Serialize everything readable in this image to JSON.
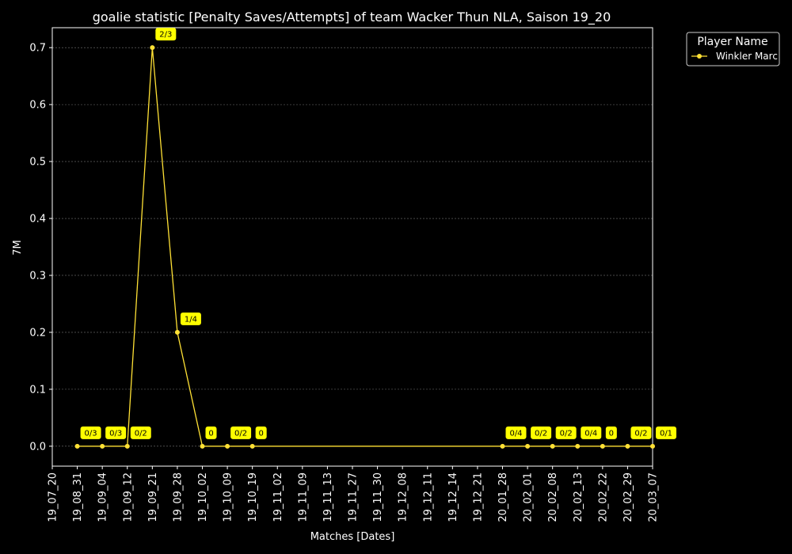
{
  "chart_data": {
    "type": "line",
    "title": "goalie statistic [Penalty Saves/Attempts] of team Wacker Thun NLA, Saison 19_20",
    "xlabel": "Matches [Dates]",
    "ylabel": "7M",
    "ylim": [
      -0.035,
      0.735
    ],
    "yticks": [
      0.0,
      0.1,
      0.2,
      0.3,
      0.4,
      0.5,
      0.6,
      0.7
    ],
    "ytick_labels": [
      "0.0",
      "0.1",
      "0.2",
      "0.3",
      "0.4",
      "0.5",
      "0.6",
      "0.7"
    ],
    "categories": [
      "19_07_20",
      "19_08_31",
      "19_09_04",
      "19_09_12",
      "19_09_21",
      "19_09_28",
      "19_10_02",
      "19_10_09",
      "19_10_19",
      "19_11_02",
      "19_11_09",
      "19_11_13",
      "19_11_27",
      "19_11_30",
      "19_12_08",
      "19_12_11",
      "19_12_14",
      "19_12_21",
      "20_01_28",
      "20_02_01",
      "20_02_08",
      "20_02_13",
      "20_02_22",
      "20_02_29",
      "20_03_07"
    ],
    "grid": "horizontal-dashed",
    "legend": {
      "title": "Player Name",
      "placement": "top-right-outside"
    },
    "series": [
      {
        "name": "Winkler Marc",
        "color": "#ffe135",
        "points": [
          {
            "x": "19_08_31",
            "y": 0.0,
            "label": "0/3"
          },
          {
            "x": "19_09_04",
            "y": 0.0,
            "label": "0/3"
          },
          {
            "x": "19_09_12",
            "y": 0.0,
            "label": "0/2"
          },
          {
            "x": "19_09_21",
            "y": 0.7,
            "label": "2/3"
          },
          {
            "x": "19_09_28",
            "y": 0.2,
            "label": "1/4"
          },
          {
            "x": "19_10_02",
            "y": 0.0,
            "label": "0"
          },
          {
            "x": "19_10_09",
            "y": 0.0,
            "label": "0/2"
          },
          {
            "x": "19_10_19",
            "y": 0.0,
            "label": "0"
          },
          {
            "x": "20_01_28",
            "y": 0.0,
            "label": "0/4"
          },
          {
            "x": "20_02_01",
            "y": 0.0,
            "label": "0/2"
          },
          {
            "x": "20_02_08",
            "y": 0.0,
            "label": "0/2"
          },
          {
            "x": "20_02_13",
            "y": 0.0,
            "label": "0/4"
          },
          {
            "x": "20_02_22",
            "y": 0.0,
            "label": "0"
          },
          {
            "x": "20_02_29",
            "y": 0.0,
            "label": "0/2"
          },
          {
            "x": "20_03_07",
            "y": 0.0,
            "label": "0/1"
          }
        ]
      }
    ],
    "colors": {
      "background": "#000000",
      "axes": "#ffffff",
      "grid": "#777777",
      "annotation_box": "#ffff00"
    }
  }
}
